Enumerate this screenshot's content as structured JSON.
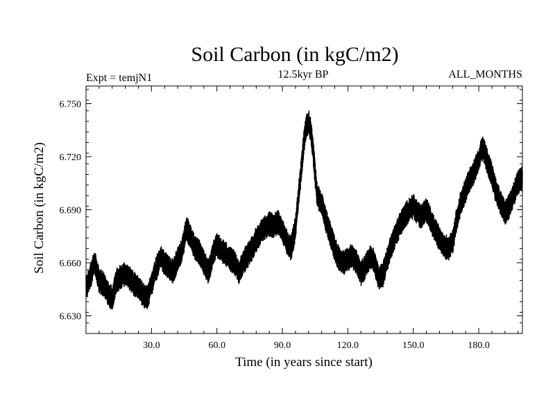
{
  "chart_data": {
    "type": "line",
    "title": "Soil Carbon (in kgC/m2)",
    "subtitle_left": "Expt = temjN1",
    "subtitle_center": "12.5kyr BP",
    "subtitle_right": "ALL_MONTHS",
    "xlabel": "Time (in years since start)",
    "ylabel": "Soil Carbon (in kgC/m2)",
    "xlim": [
      0,
      200
    ],
    "ylim": [
      6.62,
      6.76
    ],
    "xticks": [
      30,
      60,
      90,
      120,
      150,
      180
    ],
    "xtick_labels": [
      "30.0",
      "60.0",
      "90.0",
      "120.0",
      "150.0",
      "180.0"
    ],
    "yticks": [
      6.63,
      6.66,
      6.69,
      6.72,
      6.75
    ],
    "ytick_labels": [
      "6.630",
      "6.660",
      "6.690",
      "6.720",
      "6.750"
    ],
    "series": [
      {
        "name": "Soil Carbon",
        "color": "#000000",
        "x": [
          0,
          2,
          4,
          6,
          8,
          10,
          12,
          14,
          16,
          18,
          20,
          22,
          24,
          26,
          28,
          30,
          32,
          34,
          36,
          38,
          40,
          42,
          44,
          46,
          48,
          50,
          52,
          54,
          56,
          58,
          60,
          62,
          64,
          66,
          68,
          70,
          72,
          74,
          76,
          78,
          80,
          82,
          84,
          86,
          88,
          90,
          92,
          94,
          96,
          98,
          100,
          101,
          102,
          103,
          104,
          105,
          106,
          108,
          110,
          112,
          114,
          116,
          118,
          120,
          122,
          124,
          126,
          128,
          130,
          132,
          134,
          136,
          138,
          140,
          142,
          144,
          146,
          148,
          150,
          152,
          154,
          156,
          158,
          160,
          162,
          164,
          166,
          168,
          170,
          172,
          174,
          176,
          178,
          180,
          181,
          182,
          184,
          186,
          188,
          190,
          192,
          194,
          196,
          198,
          200
        ],
        "y": [
          6.646,
          6.652,
          6.661,
          6.65,
          6.648,
          6.643,
          6.64,
          6.65,
          6.652,
          6.654,
          6.651,
          6.648,
          6.647,
          6.642,
          6.64,
          6.648,
          6.656,
          6.663,
          6.66,
          6.657,
          6.655,
          6.662,
          6.667,
          6.68,
          6.674,
          6.668,
          6.666,
          6.66,
          6.655,
          6.664,
          6.67,
          6.667,
          6.665,
          6.662,
          6.66,
          6.655,
          6.66,
          6.664,
          6.668,
          6.673,
          6.677,
          6.68,
          6.682,
          6.681,
          6.683,
          6.678,
          6.672,
          6.668,
          6.68,
          6.705,
          6.73,
          6.738,
          6.74,
          6.735,
          6.725,
          6.71,
          6.698,
          6.693,
          6.684,
          6.676,
          6.668,
          6.662,
          6.66,
          6.662,
          6.664,
          6.66,
          6.654,
          6.658,
          6.663,
          6.661,
          6.652,
          6.653,
          6.662,
          6.67,
          6.676,
          6.682,
          6.686,
          6.69,
          6.692,
          6.688,
          6.686,
          6.69,
          6.684,
          6.678,
          6.674,
          6.67,
          6.668,
          6.672,
          6.685,
          6.695,
          6.701,
          6.707,
          6.712,
          6.718,
          6.723,
          6.725,
          6.717,
          6.71,
          6.7,
          6.694,
          6.688,
          6.692,
          6.699,
          6.705,
          6.708
        ]
      }
    ]
  }
}
